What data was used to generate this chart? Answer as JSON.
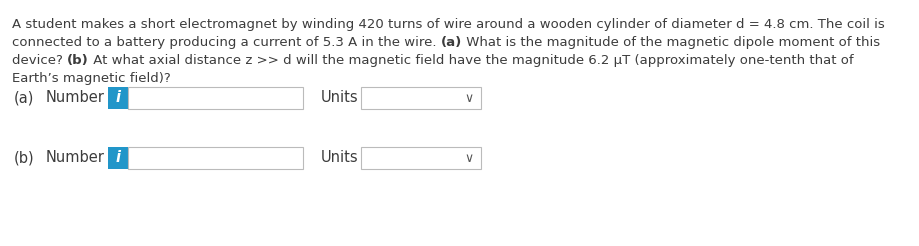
{
  "background_color": "#ffffff",
  "text_color": "#3c3c3c",
  "font_size_para": 9.5,
  "font_size_ui": 10.5,
  "info_button_color": "#2196C9",
  "info_button_text": "i",
  "input_box_border": "#bbbbbb",
  "dropdown_border": "#bbbbbb",
  "chevron_color": "#555555",
  "line0": "A student makes a short electromagnet by winding 420 turns of wire around a wooden cylinder of diameter d = 4.8 cm. The coil is",
  "line1_before_a": "connected to a battery producing a current of 5.3 A in the wire. ",
  "line1_bold_a": "(a)",
  "line1_after_a": " What is the magnitude of the magnetic dipole moment of this",
  "line2_before_b": "device? ",
  "line2_bold_b": "(b)",
  "line2_after_b": " At what axial distance z >> d will the magnetic field have the magnitude 6.2 μT (approximately one-tenth that of",
  "line3": "Earth’s magnetic field)?",
  "row_a_label": "(a)",
  "row_b_label": "(b)",
  "number_label": "Number",
  "units_label": "Units"
}
